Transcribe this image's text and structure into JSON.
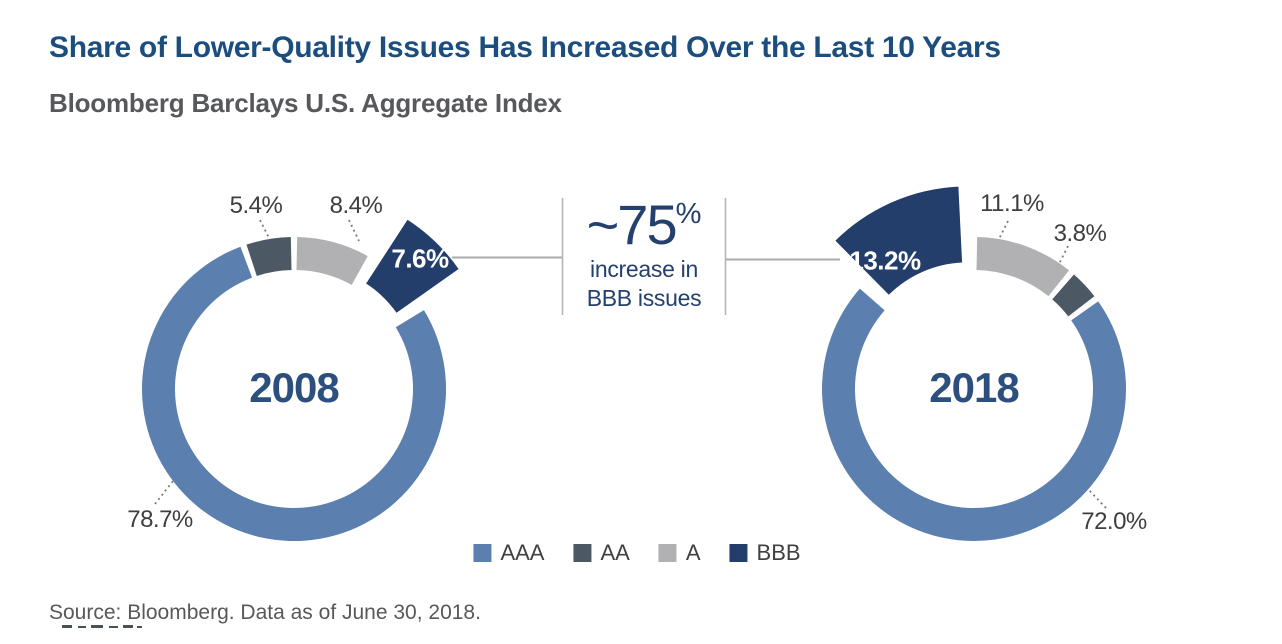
{
  "header": {
    "title": "Share of Lower-Quality Issues Has Increased Over the Last 10 Years",
    "subtitle": "Bloomberg Barclays U.S. Aggregate Index",
    "title_color": "#1B4E7E",
    "subtitle_color": "#57585B"
  },
  "chart_data": {
    "type": "pie",
    "variant": "paired-donut",
    "title": "Share of Lower-Quality Issues Has Increased Over the Last 10 Years",
    "subtitle": "Bloomberg Barclays U.S. Aggregate Index",
    "categories": [
      "AAA",
      "AA",
      "A",
      "BBB"
    ],
    "colors": {
      "AAA": "#5B7FAE",
      "AA": "#4C5964",
      "A": "#B1B1B4",
      "BBB": "#243E6B"
    },
    "legend_position": "bottom-center",
    "donuts": [
      {
        "year": "2008",
        "segments": [
          {
            "rating": "AAA",
            "value": 78.7,
            "label": "78.7%"
          },
          {
            "rating": "AA",
            "value": 5.4,
            "label": "5.4%"
          },
          {
            "rating": "A",
            "value": 8.4,
            "label": "8.4%"
          },
          {
            "rating": "BBB",
            "value": 7.6,
            "label": "7.6%",
            "exploded": true
          }
        ]
      },
      {
        "year": "2018",
        "segments": [
          {
            "rating": "AAA",
            "value": 72.0,
            "label": "72.0%"
          },
          {
            "rating": "AA",
            "value": 3.8,
            "label": "3.8%"
          },
          {
            "rating": "A",
            "value": 11.1,
            "label": "11.1%"
          },
          {
            "rating": "BBB",
            "value": 13.2,
            "label": "13.2%",
            "exploded": true
          }
        ]
      }
    ],
    "callout": {
      "value": "~75",
      "percent_sign": "%",
      "line1": "increase in",
      "line2": "BBB issues"
    },
    "legend": [
      {
        "label": "AAA"
      },
      {
        "label": "AA"
      },
      {
        "label": "A"
      },
      {
        "label": "BBB"
      }
    ]
  },
  "footer": {
    "source": "Source: Bloomberg. Data as of June 30, 2018."
  }
}
